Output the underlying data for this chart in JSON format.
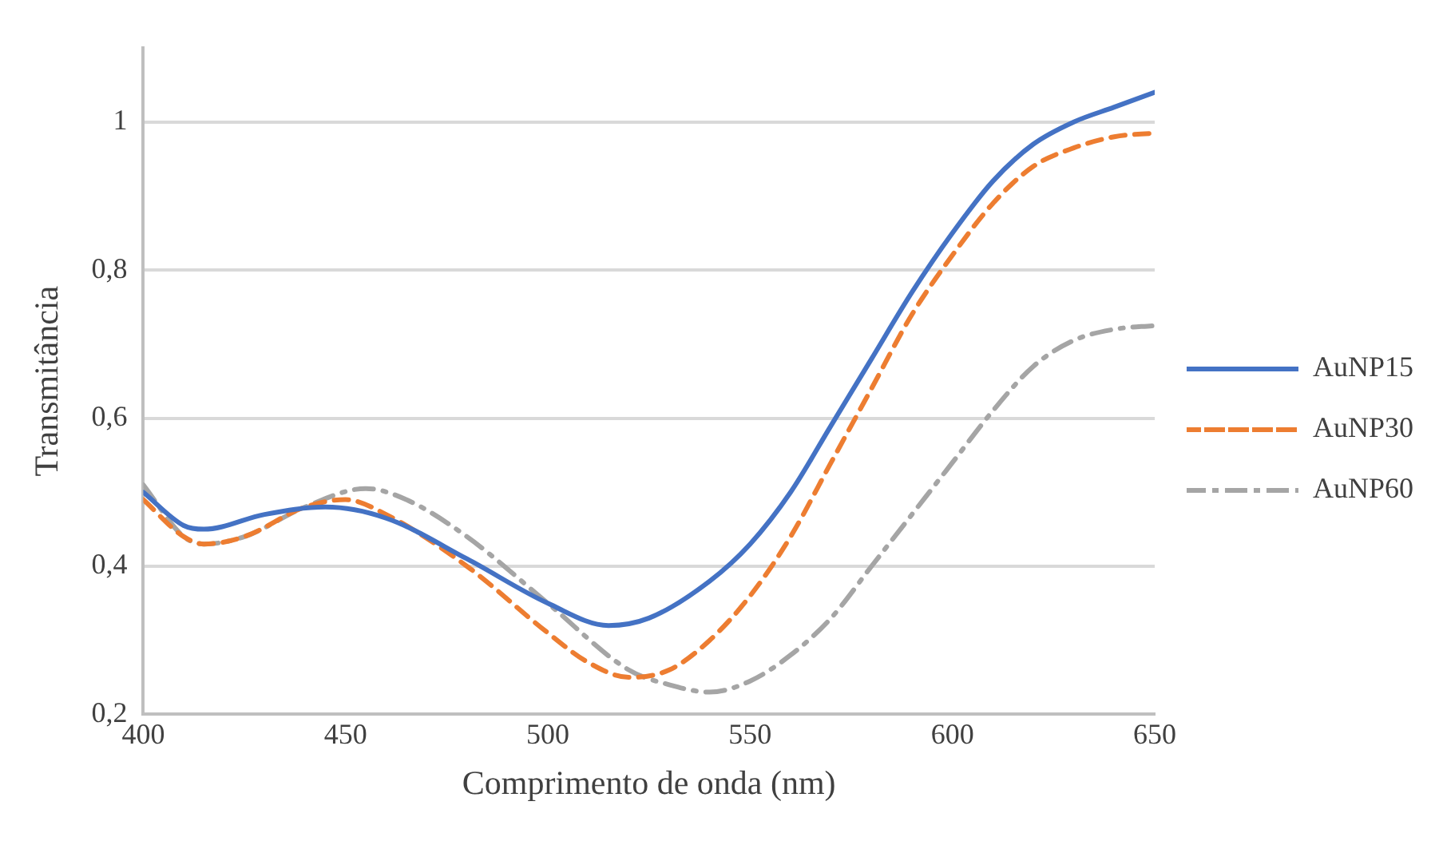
{
  "chart_data": {
    "type": "line",
    "xlabel": "Comprimento de onda (nm)",
    "ylabel": "Transmitância",
    "xlim": [
      400,
      650
    ],
    "xticks": [
      400,
      450,
      500,
      550,
      600,
      650
    ],
    "ylim": [
      0.2,
      1.1
    ],
    "yticks": [
      {
        "value": 0.2,
        "label": "0,2"
      },
      {
        "value": 0.4,
        "label": "0,4"
      },
      {
        "value": 0.6,
        "label": "0,6"
      },
      {
        "value": 0.8,
        "label": "0,8"
      },
      {
        "value": 1,
        "label": "1"
      }
    ],
    "grid": "y",
    "legend": "right",
    "marker": "none",
    "series": [
      {
        "name": "AuNP15",
        "color": "#4472c4",
        "line_style": "solid",
        "x": [
          400,
          410,
          415,
          430,
          445,
          460,
          480,
          500,
          515,
          525,
          540,
          550,
          560,
          570,
          580,
          590,
          600,
          610,
          620,
          630,
          640,
          650
        ],
        "values": [
          0.5,
          0.455,
          0.45,
          0.47,
          0.48,
          0.465,
          0.41,
          0.35,
          0.32,
          0.33,
          0.38,
          0.43,
          0.5,
          0.59,
          0.68,
          0.77,
          0.85,
          0.92,
          0.97,
          1.0,
          1.02,
          1.04
        ]
      },
      {
        "name": "AuNP30",
        "color": "#ed7d31",
        "line_style": "dashed",
        "x": [
          400,
          410,
          415,
          425,
          440,
          450,
          460,
          480,
          500,
          510,
          520,
          530,
          540,
          550,
          560,
          570,
          580,
          590,
          600,
          610,
          620,
          630,
          640,
          650
        ],
        "values": [
          0.49,
          0.44,
          0.43,
          0.44,
          0.48,
          0.49,
          0.47,
          0.4,
          0.31,
          0.27,
          0.25,
          0.26,
          0.3,
          0.36,
          0.44,
          0.54,
          0.64,
          0.74,
          0.82,
          0.89,
          0.94,
          0.965,
          0.98,
          0.985
        ]
      },
      {
        "name": "AuNP60",
        "color": "#a5a5a5",
        "line_style": "dashdot",
        "x": [
          400,
          410,
          415,
          425,
          440,
          455,
          465,
          480,
          500,
          520,
          530,
          540,
          550,
          560,
          570,
          580,
          590,
          600,
          610,
          620,
          630,
          640,
          650
        ],
        "values": [
          0.51,
          0.44,
          0.43,
          0.44,
          0.48,
          0.505,
          0.49,
          0.44,
          0.35,
          0.26,
          0.24,
          0.23,
          0.245,
          0.28,
          0.33,
          0.4,
          0.47,
          0.54,
          0.61,
          0.67,
          0.705,
          0.72,
          0.725
        ]
      }
    ]
  }
}
